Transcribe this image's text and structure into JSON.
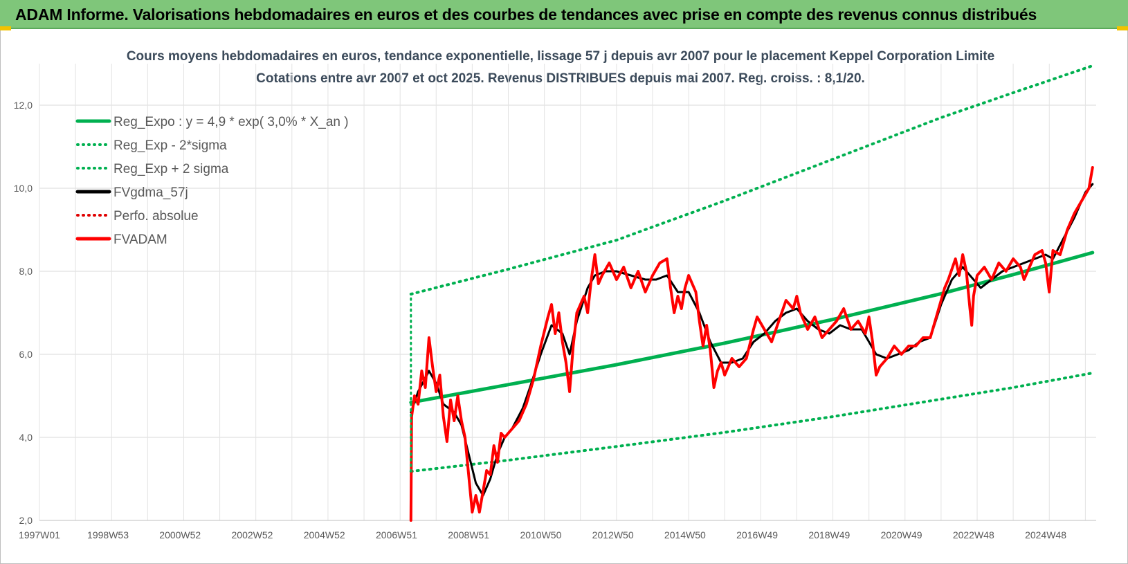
{
  "header": {
    "title": "ADAM Informe. Valorisations hebdomadaires en euros et des courbes de tendances avec prise en compte des revenus connus distribués"
  },
  "chart_data": {
    "type": "line",
    "title": "Cours moyens hebdomadaires en euros, tendance exponentielle, lissage 57 j depuis avr 2007 pour le placement Keppel Corporation Limite",
    "subtitle": "Cotations entre avr 2007 et oct 2025.  Revenus DISTRIBUES depuis mai 2007. Reg.  croiss. : 8,1/20.",
    "xlabel": "",
    "ylabel": "",
    "ylim": [
      2.0,
      13.0
    ],
    "xlim": [
      1997.0,
      2026.3
    ],
    "y_ticks": [
      2.0,
      4.0,
      6.0,
      8.0,
      10.0,
      12.0
    ],
    "y_tick_labels": [
      "2,0",
      "4,0",
      "6,0",
      "8,0",
      "10,0",
      "12,0"
    ],
    "x_ticks": [
      {
        "label": "1997W01",
        "x": 1997.0
      },
      {
        "label": "1998W53",
        "x": 1998.9
      },
      {
        "label": "2000W52",
        "x": 2000.9
      },
      {
        "label": "2002W52",
        "x": 2002.9
      },
      {
        "label": "2004W52",
        "x": 2004.9
      },
      {
        "label": "2006W51",
        "x": 2006.9
      },
      {
        "label": "2008W51",
        "x": 2008.9
      },
      {
        "label": "2010W50",
        "x": 2010.9
      },
      {
        "label": "2012W50",
        "x": 2012.9
      },
      {
        "label": "2014W50",
        "x": 2014.9
      },
      {
        "label": "2016W49",
        "x": 2016.9
      },
      {
        "label": "2018W49",
        "x": 2018.9
      },
      {
        "label": "2020W49",
        "x": 2020.9
      },
      {
        "label": "2022W48",
        "x": 2022.9
      },
      {
        "label": "2024W48",
        "x": 2024.9
      }
    ],
    "grid": true,
    "legend_position": "top-left",
    "series": [
      {
        "name": "Reg_Expo : y = 4,9 * exp( 3,0% *  X_an )",
        "color": "#00b050",
        "style": "solid",
        "width": 5,
        "points": [
          [
            2007.3,
            4.84
          ],
          [
            2010.0,
            5.27
          ],
          [
            2013.0,
            5.75
          ],
          [
            2016.0,
            6.27
          ],
          [
            2019.0,
            6.84
          ],
          [
            2022.0,
            7.46
          ],
          [
            2024.0,
            7.92
          ],
          [
            2026.2,
            8.45
          ]
        ]
      },
      {
        "name": "Reg_Exp - 2*sigma",
        "color": "#00b050",
        "style": "dotted",
        "width": 4,
        "points": [
          [
            2007.3,
            3.18
          ],
          [
            2010.0,
            3.45
          ],
          [
            2013.0,
            3.78
          ],
          [
            2016.0,
            4.12
          ],
          [
            2019.0,
            4.5
          ],
          [
            2022.0,
            4.92
          ],
          [
            2024.0,
            5.2
          ],
          [
            2026.2,
            5.55
          ]
        ]
      },
      {
        "name": "Reg_Exp + 2 sigma",
        "color": "#00b050",
        "style": "dotted",
        "width": 4,
        "points": [
          [
            2007.3,
            7.45
          ],
          [
            2010.0,
            8.05
          ],
          [
            2013.0,
            8.75
          ],
          [
            2016.0,
            9.7
          ],
          [
            2019.0,
            10.7
          ],
          [
            2022.0,
            11.7
          ],
          [
            2024.0,
            12.3
          ],
          [
            2026.2,
            12.95
          ]
        ]
      },
      {
        "name": "FVgdma_57j",
        "color": "#000000",
        "style": "solid",
        "width": 3,
        "points": [
          [
            2007.3,
            4.6
          ],
          [
            2007.5,
            5.1
          ],
          [
            2007.8,
            5.6
          ],
          [
            2008.0,
            5.3
          ],
          [
            2008.2,
            4.8
          ],
          [
            2008.5,
            4.6
          ],
          [
            2008.7,
            4.3
          ],
          [
            2008.9,
            3.6
          ],
          [
            2009.1,
            2.9
          ],
          [
            2009.3,
            2.6
          ],
          [
            2009.5,
            3.0
          ],
          [
            2009.7,
            3.6
          ],
          [
            2009.9,
            4.0
          ],
          [
            2010.1,
            4.2
          ],
          [
            2010.4,
            4.7
          ],
          [
            2010.6,
            5.2
          ],
          [
            2010.9,
            6.0
          ],
          [
            2011.2,
            6.7
          ],
          [
            2011.5,
            6.5
          ],
          [
            2011.7,
            6.0
          ],
          [
            2011.9,
            6.8
          ],
          [
            2012.2,
            7.6
          ],
          [
            2012.4,
            7.9
          ],
          [
            2012.7,
            8.0
          ],
          [
            2013.0,
            8.0
          ],
          [
            2013.4,
            7.9
          ],
          [
            2013.8,
            7.8
          ],
          [
            2014.1,
            7.8
          ],
          [
            2014.4,
            7.9
          ],
          [
            2014.7,
            7.5
          ],
          [
            2015.0,
            7.5
          ],
          [
            2015.3,
            7.0
          ],
          [
            2015.6,
            6.3
          ],
          [
            2015.9,
            5.8
          ],
          [
            2016.2,
            5.8
          ],
          [
            2016.5,
            5.9
          ],
          [
            2016.8,
            6.3
          ],
          [
            2017.1,
            6.5
          ],
          [
            2017.4,
            6.8
          ],
          [
            2017.7,
            7.0
          ],
          [
            2018.0,
            7.1
          ],
          [
            2018.3,
            6.8
          ],
          [
            2018.6,
            6.6
          ],
          [
            2018.9,
            6.5
          ],
          [
            2019.2,
            6.7
          ],
          [
            2019.5,
            6.6
          ],
          [
            2019.8,
            6.6
          ],
          [
            2020.0,
            6.3
          ],
          [
            2020.2,
            6.0
          ],
          [
            2020.5,
            5.9
          ],
          [
            2020.8,
            6.0
          ],
          [
            2021.1,
            6.1
          ],
          [
            2021.4,
            6.3
          ],
          [
            2021.7,
            6.4
          ],
          [
            2022.0,
            7.2
          ],
          [
            2022.3,
            7.8
          ],
          [
            2022.6,
            8.1
          ],
          [
            2022.9,
            7.8
          ],
          [
            2023.1,
            7.6
          ],
          [
            2023.4,
            7.8
          ],
          [
            2023.7,
            8.0
          ],
          [
            2024.0,
            8.1
          ],
          [
            2024.3,
            8.2
          ],
          [
            2024.6,
            8.3
          ],
          [
            2024.9,
            8.4
          ],
          [
            2025.1,
            8.3
          ],
          [
            2025.4,
            8.8
          ],
          [
            2025.7,
            9.3
          ],
          [
            2026.0,
            9.9
          ],
          [
            2026.2,
            10.1
          ]
        ]
      },
      {
        "name": "Perfo. absolue",
        "color": "#e00000",
        "style": "dotted",
        "width": 3,
        "points": []
      },
      {
        "name": "FVADAM",
        "color": "#ff0000",
        "style": "solid",
        "width": 4,
        "points": [
          [
            2007.3,
            2.0
          ],
          [
            2007.32,
            4.5
          ],
          [
            2007.4,
            5.0
          ],
          [
            2007.5,
            4.8
          ],
          [
            2007.6,
            5.6
          ],
          [
            2007.7,
            5.2
          ],
          [
            2007.8,
            6.4
          ],
          [
            2007.9,
            5.7
          ],
          [
            2008.0,
            5.1
          ],
          [
            2008.1,
            5.5
          ],
          [
            2008.2,
            4.5
          ],
          [
            2008.3,
            3.9
          ],
          [
            2008.4,
            4.9
          ],
          [
            2008.5,
            4.4
          ],
          [
            2008.6,
            5.0
          ],
          [
            2008.7,
            4.4
          ],
          [
            2008.8,
            4.0
          ],
          [
            2008.9,
            3.1
          ],
          [
            2009.0,
            2.2
          ],
          [
            2009.1,
            2.6
          ],
          [
            2009.2,
            2.2
          ],
          [
            2009.3,
            2.7
          ],
          [
            2009.4,
            3.2
          ],
          [
            2009.5,
            3.1
          ],
          [
            2009.6,
            3.8
          ],
          [
            2009.7,
            3.4
          ],
          [
            2009.8,
            4.1
          ],
          [
            2009.9,
            4.0
          ],
          [
            2010.1,
            4.2
          ],
          [
            2010.3,
            4.4
          ],
          [
            2010.5,
            4.8
          ],
          [
            2010.7,
            5.4
          ],
          [
            2010.9,
            6.2
          ],
          [
            2011.1,
            6.9
          ],
          [
            2011.2,
            7.2
          ],
          [
            2011.3,
            6.5
          ],
          [
            2011.4,
            7.0
          ],
          [
            2011.5,
            6.3
          ],
          [
            2011.6,
            5.8
          ],
          [
            2011.7,
            5.1
          ],
          [
            2011.8,
            6.2
          ],
          [
            2011.9,
            7.0
          ],
          [
            2012.1,
            7.4
          ],
          [
            2012.2,
            7.0
          ],
          [
            2012.3,
            7.8
          ],
          [
            2012.4,
            8.4
          ],
          [
            2012.5,
            7.7
          ],
          [
            2012.6,
            7.9
          ],
          [
            2012.8,
            8.2
          ],
          [
            2013.0,
            7.8
          ],
          [
            2013.2,
            8.1
          ],
          [
            2013.4,
            7.6
          ],
          [
            2013.6,
            8.0
          ],
          [
            2013.8,
            7.5
          ],
          [
            2014.0,
            7.9
          ],
          [
            2014.2,
            8.2
          ],
          [
            2014.4,
            8.3
          ],
          [
            2014.5,
            7.6
          ],
          [
            2014.6,
            7.0
          ],
          [
            2014.7,
            7.4
          ],
          [
            2014.8,
            7.1
          ],
          [
            2014.9,
            7.6
          ],
          [
            2015.0,
            7.9
          ],
          [
            2015.2,
            7.5
          ],
          [
            2015.3,
            6.8
          ],
          [
            2015.4,
            6.2
          ],
          [
            2015.5,
            6.7
          ],
          [
            2015.6,
            6.1
          ],
          [
            2015.7,
            5.2
          ],
          [
            2015.8,
            5.6
          ],
          [
            2015.9,
            5.8
          ],
          [
            2016.0,
            5.5
          ],
          [
            2016.2,
            5.9
          ],
          [
            2016.4,
            5.7
          ],
          [
            2016.6,
            5.9
          ],
          [
            2016.8,
            6.6
          ],
          [
            2016.9,
            6.9
          ],
          [
            2017.1,
            6.6
          ],
          [
            2017.3,
            6.3
          ],
          [
            2017.5,
            6.8
          ],
          [
            2017.7,
            7.3
          ],
          [
            2017.9,
            7.1
          ],
          [
            2018.0,
            7.4
          ],
          [
            2018.1,
            7.0
          ],
          [
            2018.3,
            6.6
          ],
          [
            2018.5,
            6.9
          ],
          [
            2018.7,
            6.4
          ],
          [
            2018.9,
            6.6
          ],
          [
            2019.1,
            6.8
          ],
          [
            2019.3,
            7.1
          ],
          [
            2019.5,
            6.6
          ],
          [
            2019.7,
            6.8
          ],
          [
            2019.9,
            6.5
          ],
          [
            2020.0,
            6.9
          ],
          [
            2020.1,
            6.3
          ],
          [
            2020.2,
            5.5
          ],
          [
            2020.3,
            5.7
          ],
          [
            2020.5,
            5.9
          ],
          [
            2020.7,
            6.2
          ],
          [
            2020.9,
            6.0
          ],
          [
            2021.1,
            6.2
          ],
          [
            2021.3,
            6.2
          ],
          [
            2021.5,
            6.4
          ],
          [
            2021.7,
            6.4
          ],
          [
            2021.9,
            7.0
          ],
          [
            2022.1,
            7.6
          ],
          [
            2022.2,
            7.8
          ],
          [
            2022.4,
            8.3
          ],
          [
            2022.5,
            7.9
          ],
          [
            2022.6,
            8.4
          ],
          [
            2022.7,
            8.0
          ],
          [
            2022.8,
            7.1
          ],
          [
            2022.85,
            6.7
          ],
          [
            2022.9,
            7.4
          ],
          [
            2023.0,
            7.9
          ],
          [
            2023.2,
            8.1
          ],
          [
            2023.4,
            7.8
          ],
          [
            2023.6,
            8.2
          ],
          [
            2023.8,
            8.0
          ],
          [
            2024.0,
            8.3
          ],
          [
            2024.2,
            8.1
          ],
          [
            2024.3,
            7.8
          ],
          [
            2024.4,
            8.0
          ],
          [
            2024.6,
            8.4
          ],
          [
            2024.8,
            8.5
          ],
          [
            2024.9,
            8.2
          ],
          [
            2025.0,
            7.5
          ],
          [
            2025.1,
            8.5
          ],
          [
            2025.3,
            8.4
          ],
          [
            2025.5,
            9.0
          ],
          [
            2025.7,
            9.4
          ],
          [
            2025.9,
            9.7
          ],
          [
            2026.1,
            10.0
          ],
          [
            2026.2,
            10.5
          ]
        ]
      }
    ]
  }
}
